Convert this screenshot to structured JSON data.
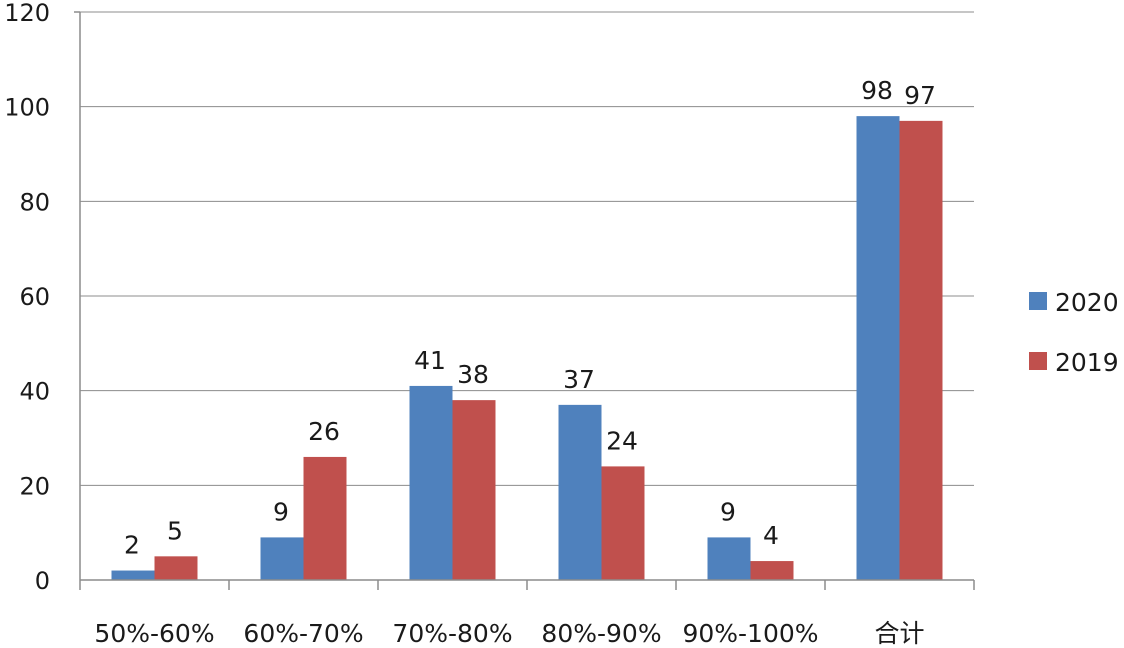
{
  "chart_data": {
    "type": "bar",
    "categories": [
      "50%-60%",
      "60%-70%",
      "70%-80%",
      "80%-90%",
      "90%-100%",
      "合计"
    ],
    "series": [
      {
        "name": "2020",
        "color": "#4F81BD",
        "values": [
          2,
          9,
          41,
          37,
          9,
          98
        ]
      },
      {
        "name": "2019",
        "color": "#C0504D",
        "values": [
          5,
          26,
          38,
          24,
          4,
          97
        ]
      }
    ],
    "ylim": [
      0,
      120
    ],
    "yticks": [
      0,
      20,
      40,
      60,
      80,
      100,
      120
    ],
    "grid": true,
    "legend": "right",
    "data_labels": true
  }
}
